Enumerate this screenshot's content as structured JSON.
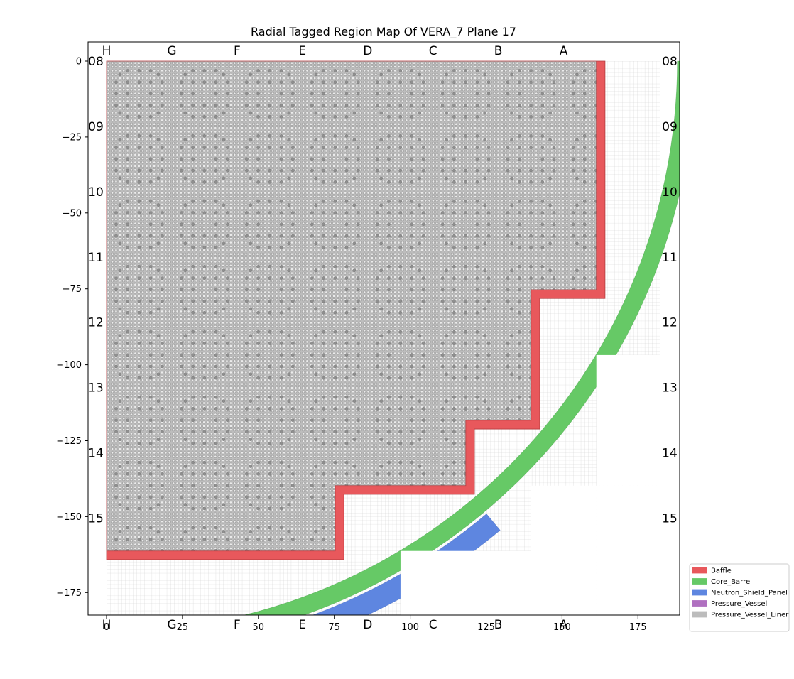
{
  "chart_data": {
    "type": "region map",
    "title": "Radial Tagged Region Map Of VERA_7 Plane 17",
    "xlabel": "",
    "ylabel": "",
    "xlim": [
      -6,
      190
    ],
    "ylim": [
      -190,
      6
    ],
    "x_ticks": [
      0,
      25,
      50,
      75,
      100,
      125,
      150,
      175
    ],
    "y_ticks": [
      0,
      -25,
      -50,
      -75,
      -100,
      -125,
      -150,
      -175
    ],
    "y_tick_labels": [
      "0",
      "−25",
      "−50",
      "−75",
      "−100",
      "−125",
      "−150",
      "−175"
    ],
    "column_labels": [
      {
        "label": "H",
        "x": 0
      },
      {
        "label": "G",
        "x": 21.5
      },
      {
        "label": "F",
        "x": 43
      },
      {
        "label": "E",
        "x": 64.5
      },
      {
        "label": "D",
        "x": 86
      },
      {
        "label": "C",
        "x": 107.5
      },
      {
        "label": "B",
        "x": 129
      },
      {
        "label": "A",
        "x": 150.5
      }
    ],
    "row_labels": [
      {
        "label": "08",
        "y": 0
      },
      {
        "label": "09",
        "y": -21.5
      },
      {
        "label": "10",
        "y": -43
      },
      {
        "label": "11",
        "y": -64.5
      },
      {
        "label": "12",
        "y": -86
      },
      {
        "label": "13",
        "y": -107.5
      },
      {
        "label": "14",
        "y": -129
      },
      {
        "label": "15",
        "y": -150.5
      }
    ],
    "legend_position": "outside lower-right",
    "legend": [
      {
        "name": "Baffle",
        "color": "#e8585c"
      },
      {
        "name": "Core_Barrel",
        "color": "#66c966"
      },
      {
        "name": "Neutron_Shield_Panel",
        "color": "#5e86e0"
      },
      {
        "name": "Pressure_Vessel",
        "color": "#b070c0"
      },
      {
        "name": "Pressure_Vessel_Liner",
        "color": "#bcbcbc"
      }
    ],
    "regions": {
      "fuel_color": "#bdbdbd",
      "grid_color": "#d2d2d2",
      "baffle_inner_boundary": [
        [
          0,
          0
        ],
        [
          161.3,
          0
        ],
        [
          161.3,
          -75.3
        ],
        [
          139.8,
          -75.3
        ],
        [
          139.8,
          -118.3
        ],
        [
          118.3,
          -118.3
        ],
        [
          118.3,
          -139.8
        ],
        [
          75.3,
          -139.8
        ],
        [
          75.3,
          -161.3
        ],
        [
          0,
          -161.3
        ]
      ],
      "baffle_thickness": 2.85,
      "core_barrel": {
        "inner_radius": 187.96,
        "outer_radius": 193.68
      },
      "neutron_shield_panel": {
        "inner_radius": 194.64,
        "outer_radius": 201.63,
        "angle_range_deg": [
          -70,
          -50
        ]
      },
      "mesh_extent": [
        0,
        182.5,
        -182.5,
        0
      ],
      "blank_regions": [
        [
          161.3,
          182.5,
          -139.8,
          -96.8
        ],
        [
          139.8,
          161.3,
          -182.5,
          -139.8
        ],
        [
          96.8,
          139.8,
          -182.5,
          -161.3
        ],
        [
          161.3,
          182.5,
          -182.5,
          -139.8
        ]
      ],
      "assembly_pitch": 21.5,
      "pins_per_side": 17
    }
  }
}
